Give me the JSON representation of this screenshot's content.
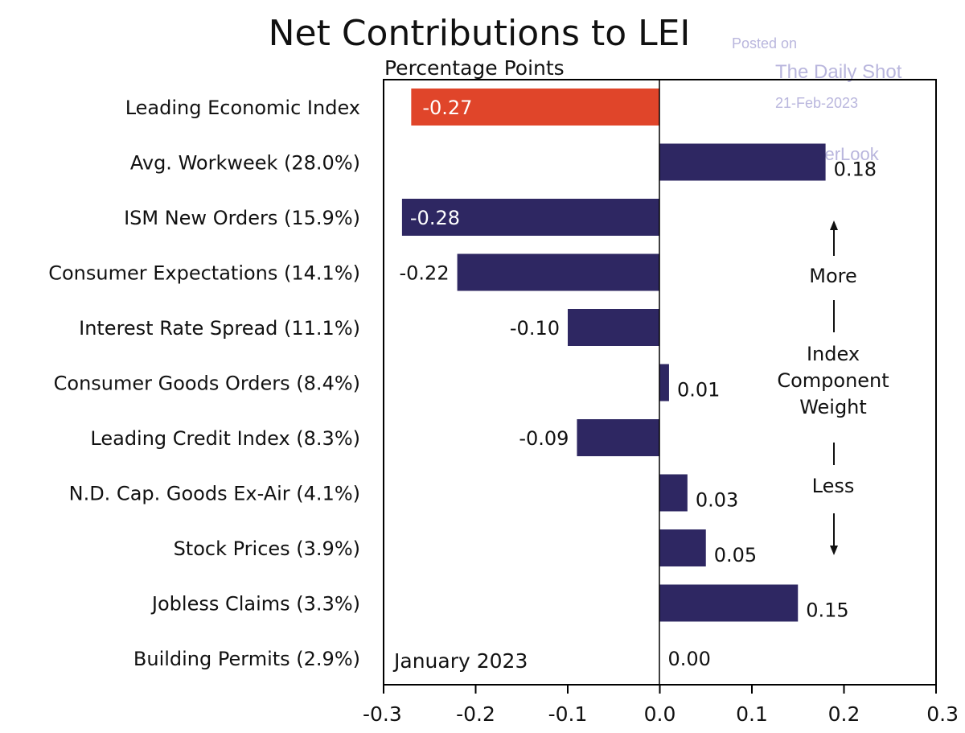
{
  "chart_data": {
    "type": "bar",
    "orientation": "horizontal",
    "title": "Net Contributions to LEI",
    "subtitle": "Percentage Points",
    "period_label": "January 2023",
    "xlim": [
      -0.3,
      0.3
    ],
    "xticks": [
      -0.3,
      -0.2,
      -0.1,
      0.0,
      0.1,
      0.2,
      0.3
    ],
    "xtick_labels": [
      "-0.3",
      "-0.2",
      "-0.1",
      "0.0",
      "0.1",
      "0.2",
      "0.3"
    ],
    "grid": false,
    "categories": [
      "Leading Economic Index",
      "Avg. Workweek (28.0%)",
      "ISM New Orders (15.9%)",
      "Consumer Expectations (14.1%)",
      "Interest Rate Spread (11.1%)",
      "Consumer Goods Orders (8.4%)",
      "Leading Credit Index (8.3%)",
      "N.D. Cap. Goods Ex-Air (4.1%)",
      "Stock Prices (3.9%)",
      "Jobless Claims (3.3%)",
      "Building Permits (2.9%)"
    ],
    "values": [
      -0.27,
      0.18,
      -0.28,
      -0.22,
      -0.1,
      0.01,
      -0.09,
      0.03,
      0.05,
      0.15,
      0.0
    ],
    "value_labels": [
      "-0.27",
      "0.18",
      "-0.28",
      "-0.22",
      "-0.10",
      "0.01",
      "-0.09",
      "0.03",
      "0.05",
      "0.15",
      "0.00"
    ],
    "colors": {
      "highlight": "#e0452a",
      "default": "#2e2762",
      "axis": "#000000"
    },
    "weight_annotation": {
      "more": "More",
      "middle": [
        "Index",
        "Component",
        "Weight"
      ],
      "less": "Less"
    },
    "watermark": {
      "line1": "Posted on",
      "line2": "The Daily Shot",
      "line3": "21-Feb-2023",
      "line4": "@SoberLook"
    }
  }
}
